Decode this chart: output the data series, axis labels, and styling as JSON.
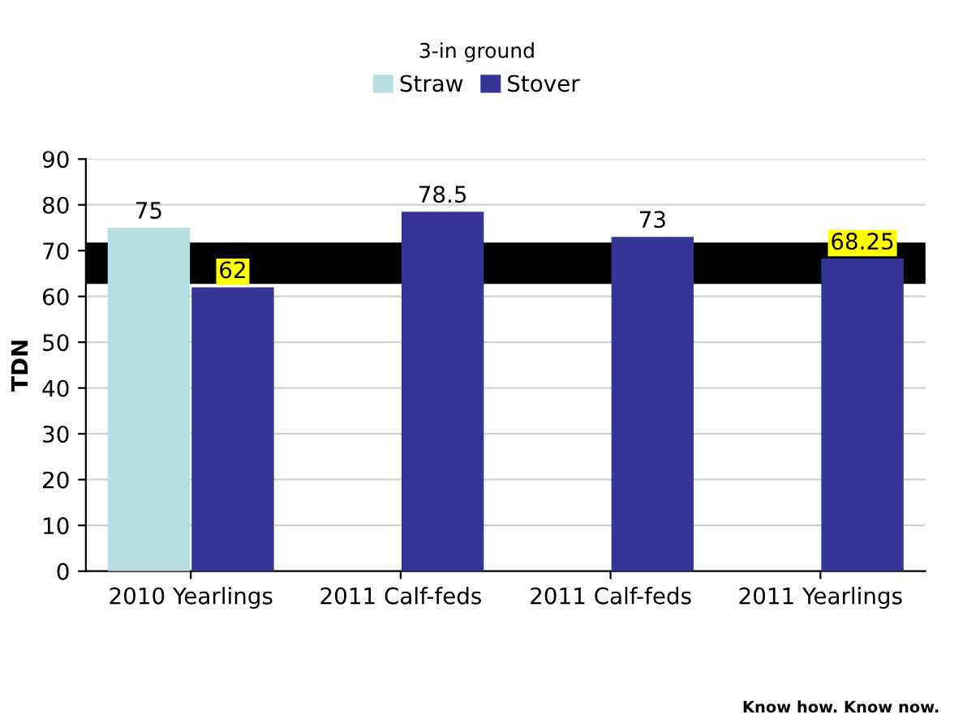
{
  "chart_data": {
    "type": "bar",
    "title": "3-in ground",
    "ylabel": "TDN",
    "categories": [
      "2010 Yearlings",
      "2011 Calf-feds",
      "2011 Calf-feds",
      "2011 Yearlings"
    ],
    "series": [
      {
        "name": "Straw",
        "color": "#b7dfe1",
        "values": [
          75,
          null,
          null,
          null
        ]
      },
      {
        "name": "Stover",
        "color": "#353598",
        "values": [
          62,
          78.5,
          73,
          68.25
        ]
      }
    ],
    "ylim": [
      0,
      90
    ],
    "yticks": [
      0,
      10,
      20,
      30,
      40,
      50,
      60,
      70,
      80,
      90
    ],
    "bands": [
      {
        "axis": "y",
        "from": 63,
        "to": 71.5,
        "color": "#000000"
      }
    ],
    "data_labels": true,
    "grid": "y",
    "legend": "top",
    "annotations": [
      "Know how. Know now."
    ]
  }
}
